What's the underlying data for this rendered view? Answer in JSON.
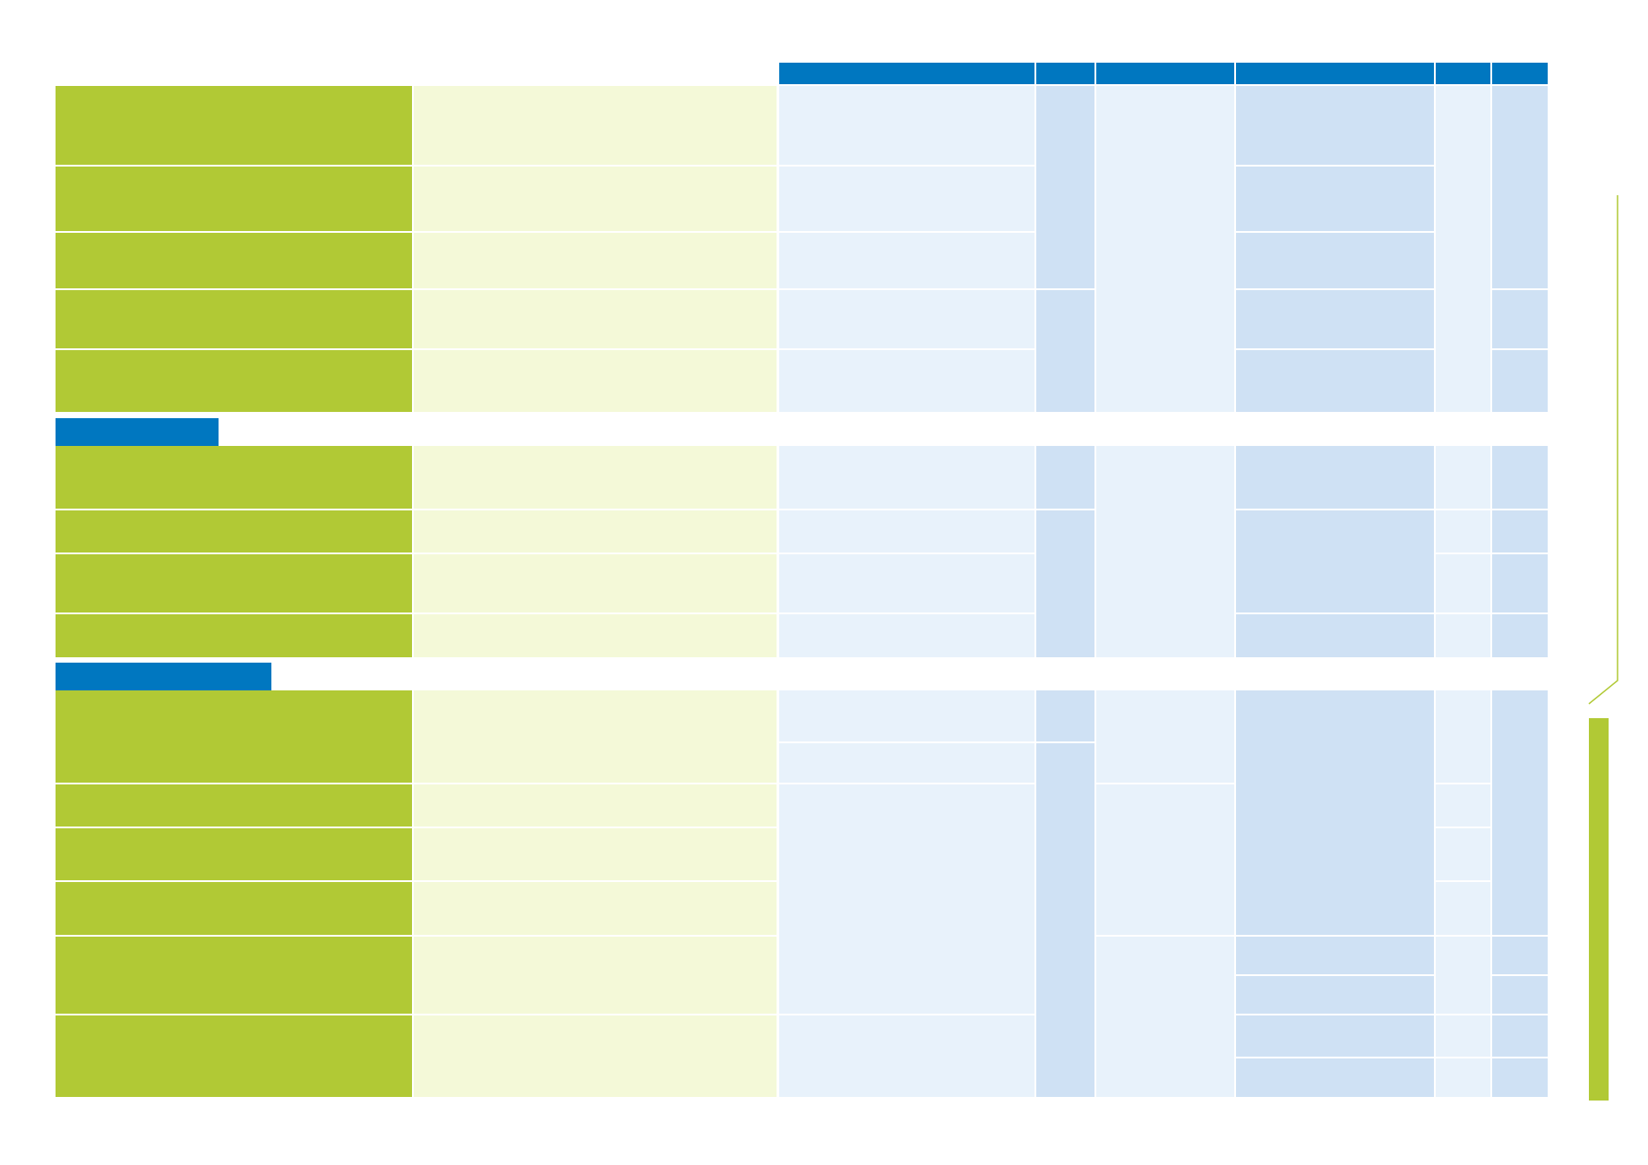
{
  "colors": {
    "header_blue": "#0077c0",
    "green": "#b1c935",
    "pale_green": "#f4f9d8",
    "light_blue": "#e8f2fb",
    "mid_blue": "#cfe1f4"
  },
  "header_columns": [
    "",
    "",
    "",
    "",
    "",
    ""
  ],
  "sections": [
    {
      "label": "",
      "rows": [
        "",
        "",
        "",
        "",
        ""
      ]
    },
    {
      "label": "",
      "rows": [
        "",
        "",
        "",
        ""
      ]
    },
    {
      "label": "",
      "rows": [
        "",
        "",
        "",
        "",
        "",
        ""
      ]
    }
  ],
  "side_label": ""
}
